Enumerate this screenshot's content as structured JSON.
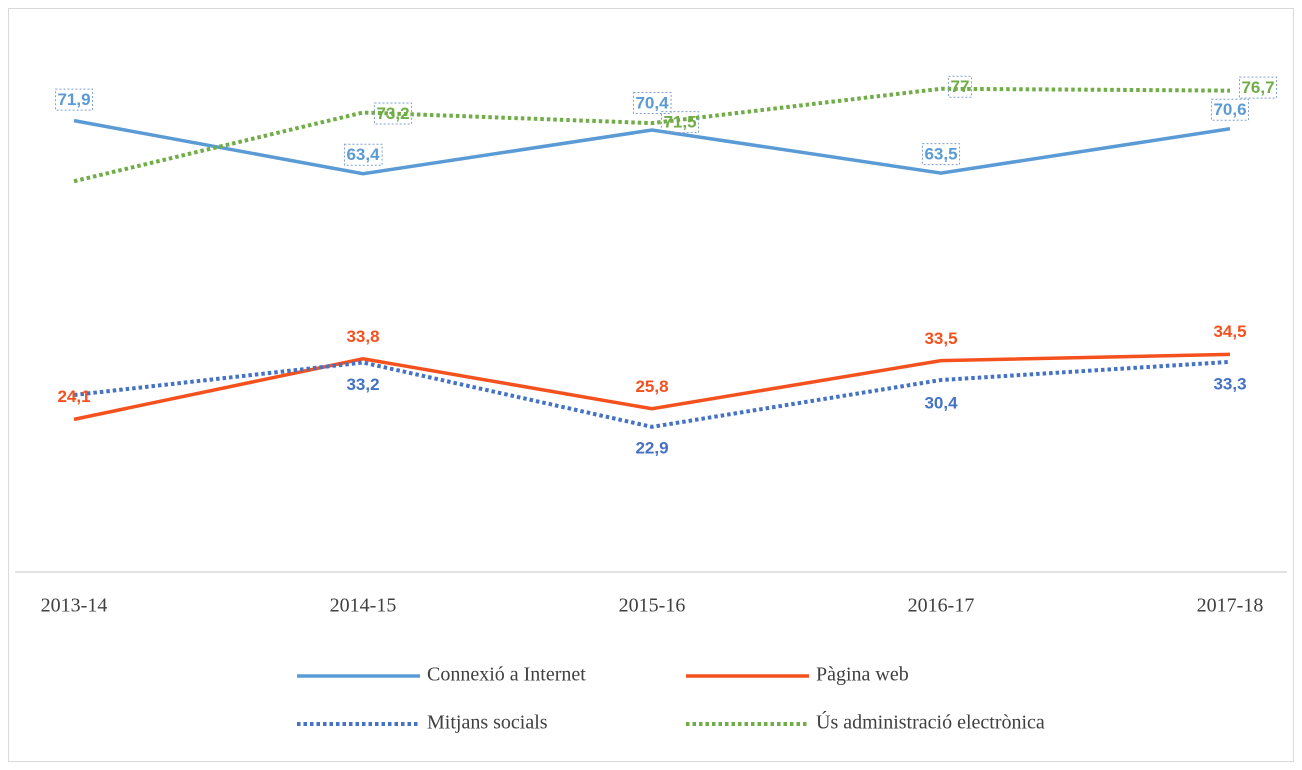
{
  "chart_data": {
    "type": "line",
    "categories": [
      "2013-14",
      "2014-15",
      "2015-16",
      "2016-17",
      "2017-18"
    ],
    "ylim": [
      0,
      80
    ],
    "series": [
      {
        "name": "Connexió a Internet",
        "color": "#5b9bd5",
        "dash": "solid",
        "values": [
          71.9,
          63.4,
          70.4,
          63.5,
          70.6
        ],
        "value_labels": [
          "71,9",
          "63,4",
          "70,4",
          "63,5",
          "70,6"
        ]
      },
      {
        "name": "Pàgina web",
        "color": "#f4511e",
        "dash": "solid",
        "values": [
          24.1,
          33.8,
          25.8,
          33.5,
          34.5
        ],
        "value_labels": [
          "24,1",
          "33,8",
          "25,8",
          "33,5",
          "34,5"
        ]
      },
      {
        "name": "Mitjans socials",
        "color": "#4472c4",
        "dash": "dotted",
        "values": [
          28.0,
          33.2,
          22.9,
          30.4,
          33.3
        ],
        "value_labels": [
          null,
          "33,2",
          "22,9",
          "30,4",
          "33,3"
        ]
      },
      {
        "name": "Ús administració electrònica",
        "color": "#70ad47",
        "dash": "dotted",
        "values": [
          62.2,
          73.2,
          71.5,
          77,
          76.7
        ],
        "value_labels": [
          null,
          "73,2",
          "71,5",
          "77",
          "76,7"
        ]
      }
    ]
  }
}
